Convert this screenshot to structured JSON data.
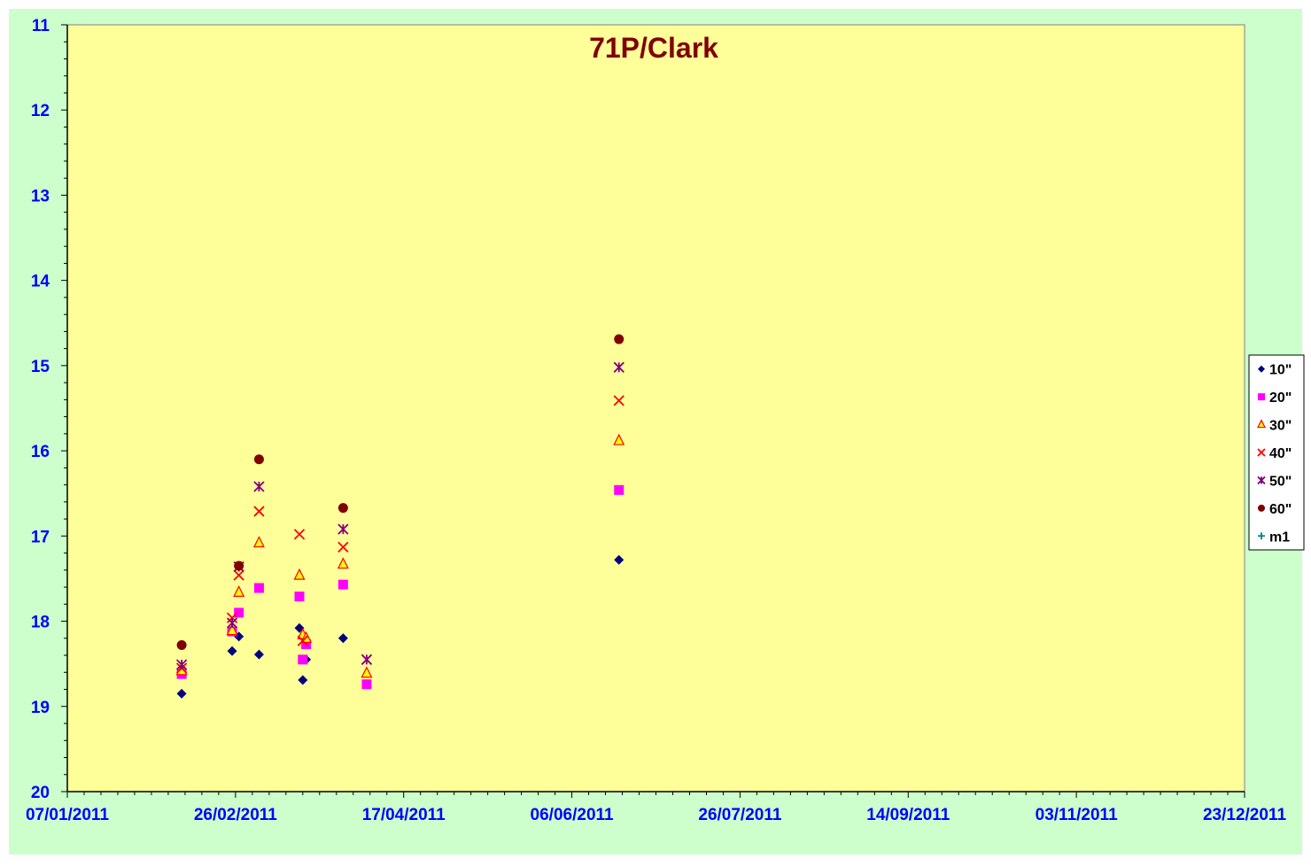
{
  "colors": {
    "chart_background": "#CCFFCC",
    "plot_background": "#FFFF99",
    "axis_label_color": "#0000FF",
    "title_color": "#800000"
  },
  "chart_data": {
    "type": "scatter",
    "title": "71P/Clark",
    "xlabel": "",
    "ylabel": "",
    "x_axis_type": "date",
    "xlim": [
      "2011-01-07",
      "2011-12-23"
    ],
    "x_ticks": [
      "07/01/2011",
      "26/02/2011",
      "17/04/2011",
      "06/06/2011",
      "26/07/2011",
      "14/09/2011",
      "03/11/2011",
      "23/12/2011"
    ],
    "ylim": [
      11,
      20
    ],
    "y_reversed": true,
    "y_ticks": [
      "11",
      "12",
      "13",
      "14",
      "15",
      "16",
      "17",
      "18",
      "19",
      "20"
    ],
    "grid": false,
    "legend_position": "right",
    "series": [
      {
        "name": "10\"",
        "marker": "diamond",
        "color": "#000080",
        "points": [
          {
            "x": "2011-02-10",
            "y": 18.85
          },
          {
            "x": "2011-02-25",
            "y": 18.35
          },
          {
            "x": "2011-02-27",
            "y": 18.18
          },
          {
            "x": "2011-03-05",
            "y": 18.39
          },
          {
            "x": "2011-03-17",
            "y": 18.08
          },
          {
            "x": "2011-03-18",
            "y": 18.69
          },
          {
            "x": "2011-03-19",
            "y": 18.45
          },
          {
            "x": "2011-03-30",
            "y": 18.2
          },
          {
            "x": "2011-06-20",
            "y": 17.28
          }
        ]
      },
      {
        "name": "20\"",
        "marker": "square",
        "color": "#FF00FF",
        "points": [
          {
            "x": "2011-02-10",
            "y": 18.62
          },
          {
            "x": "2011-02-25",
            "y": 18.12
          },
          {
            "x": "2011-02-27",
            "y": 17.9
          },
          {
            "x": "2011-03-05",
            "y": 17.61
          },
          {
            "x": "2011-03-17",
            "y": 17.71
          },
          {
            "x": "2011-03-18",
            "y": 18.45
          },
          {
            "x": "2011-03-19",
            "y": 18.27
          },
          {
            "x": "2011-03-30",
            "y": 17.57
          },
          {
            "x": "2011-04-06",
            "y": 18.74
          },
          {
            "x": "2011-06-20",
            "y": 16.46
          }
        ]
      },
      {
        "name": "30\"",
        "marker": "triangle",
        "color": "#FFFF00",
        "points": [
          {
            "x": "2011-02-10",
            "y": 18.58
          },
          {
            "x": "2011-02-25",
            "y": 18.11
          },
          {
            "x": "2011-02-27",
            "y": 17.66
          },
          {
            "x": "2011-03-05",
            "y": 17.08
          },
          {
            "x": "2011-03-17",
            "y": 17.46
          },
          {
            "x": "2011-03-18",
            "y": 18.16
          },
          {
            "x": "2011-03-19",
            "y": 18.2
          },
          {
            "x": "2011-03-30",
            "y": 17.33
          },
          {
            "x": "2011-04-06",
            "y": 18.61
          },
          {
            "x": "2011-06-20",
            "y": 15.88
          }
        ]
      },
      {
        "name": "40\"",
        "marker": "x",
        "color": "#FF0000",
        "points": [
          {
            "x": "2011-02-10",
            "y": 18.55
          },
          {
            "x": "2011-02-25",
            "y": 17.96
          },
          {
            "x": "2011-02-27",
            "y": 17.46
          },
          {
            "x": "2011-03-05",
            "y": 16.71
          },
          {
            "x": "2011-03-17",
            "y": 16.98
          },
          {
            "x": "2011-03-18",
            "y": 18.23
          },
          {
            "x": "2011-03-30",
            "y": 17.13
          },
          {
            "x": "2011-04-06",
            "y": 18.45
          },
          {
            "x": "2011-06-20",
            "y": 15.41
          }
        ]
      },
      {
        "name": "50\"",
        "marker": "star",
        "color": "#800080",
        "points": [
          {
            "x": "2011-02-10",
            "y": 18.51
          },
          {
            "x": "2011-02-25",
            "y": 18.02
          },
          {
            "x": "2011-02-27",
            "y": 17.36
          },
          {
            "x": "2011-03-05",
            "y": 16.42
          },
          {
            "x": "2011-03-30",
            "y": 16.92
          },
          {
            "x": "2011-04-06",
            "y": 18.45
          },
          {
            "x": "2011-06-20",
            "y": 15.02
          }
        ]
      },
      {
        "name": "60\"",
        "marker": "circle",
        "color": "#800000",
        "points": [
          {
            "x": "2011-02-10",
            "y": 18.28
          },
          {
            "x": "2011-02-27",
            "y": 17.35
          },
          {
            "x": "2011-03-05",
            "y": 16.1
          },
          {
            "x": "2011-03-30",
            "y": 16.67
          },
          {
            "x": "2011-06-20",
            "y": 14.69
          }
        ]
      },
      {
        "name": "m1",
        "marker": "plus",
        "color": "#008080",
        "points": []
      }
    ]
  }
}
